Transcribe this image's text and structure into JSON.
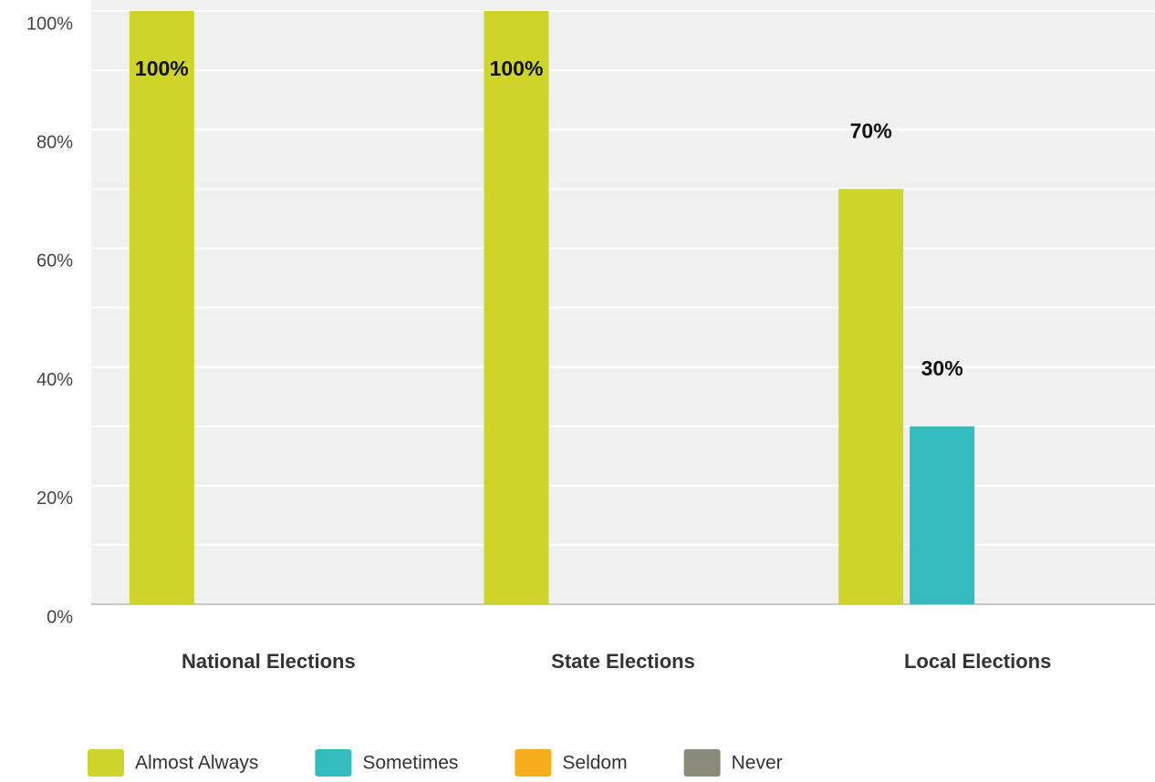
{
  "chart_data": {
    "type": "bar",
    "categories": [
      "National Elections",
      "State Elections",
      "Local Elections"
    ],
    "series": [
      {
        "name": "Almost Always",
        "color": "#cfd42a",
        "values": [
          100,
          100,
          70
        ],
        "value_labels": [
          "100%",
          "100%",
          "70%"
        ]
      },
      {
        "name": "Sometimes",
        "color": "#33bcbe",
        "values": [
          0,
          0,
          30
        ],
        "value_labels": [
          null,
          null,
          "30%"
        ]
      },
      {
        "name": "Seldom",
        "color": "#f5ad1c",
        "values": [
          0,
          0,
          0
        ],
        "value_labels": [
          null,
          null,
          null
        ]
      },
      {
        "name": "Never",
        "color": "#8a8b7a",
        "values": [
          0,
          0,
          0
        ],
        "value_labels": [
          null,
          null,
          null
        ]
      }
    ],
    "ylim": [
      0,
      100
    ],
    "yticks": [
      {
        "value": 0,
        "label": "0%"
      },
      {
        "value": 20,
        "label": "20%"
      },
      {
        "value": 40,
        "label": "40%"
      },
      {
        "value": 60,
        "label": "60%"
      },
      {
        "value": 80,
        "label": "80%"
      },
      {
        "value": 100,
        "label": "100%"
      }
    ],
    "minor_yticks": [
      10,
      30,
      50,
      70,
      90
    ],
    "grid": true,
    "legend": "bottom"
  }
}
